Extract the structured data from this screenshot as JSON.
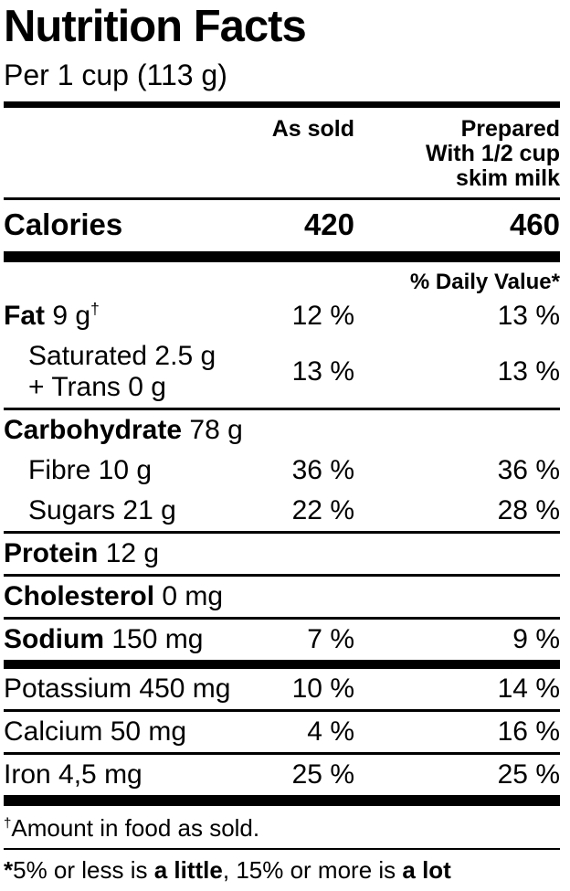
{
  "label": {
    "title": "Nutrition Facts",
    "serving": "Per 1 cup (113 g)",
    "columns": {
      "as_sold": "As sold",
      "prepared_line1": "Prepared",
      "prepared_line2": "With 1/2 cup",
      "prepared_line3": "skim milk"
    },
    "calories": {
      "name": "Calories",
      "as_sold": "420",
      "prepared": "460"
    },
    "daily_value_header": "% Daily Value*",
    "rows": [
      {
        "bold": "Fat",
        "rest": "9 g",
        "sup": "†",
        "as_sold": "12 %",
        "prepared": "13 %"
      },
      {
        "line1": "Saturated 2.5 g",
        "line2": "+ Trans 0 g",
        "as_sold": "13 %",
        "prepared": "13 %"
      },
      {
        "bold": "Carbohydrate",
        "rest": "78 g",
        "as_sold": "",
        "prepared": ""
      },
      {
        "rest": "Fibre 10 g",
        "as_sold": "36 %",
        "prepared": "36 %"
      },
      {
        "rest": "Sugars 21 g",
        "as_sold": "22 %",
        "prepared": "28 %"
      },
      {
        "bold": "Protein",
        "rest": "12 g",
        "as_sold": "",
        "prepared": ""
      },
      {
        "bold": "Cholesterol",
        "rest": "0 mg",
        "as_sold": "",
        "prepared": ""
      },
      {
        "bold": "Sodium",
        "rest": "150 mg",
        "as_sold": "7 %",
        "prepared": "9 %"
      },
      {
        "rest": "Potassium 450 mg",
        "as_sold": "10 %",
        "prepared": "14 %"
      },
      {
        "rest": "Calcium 50 mg",
        "as_sold": "4 %",
        "prepared": "16 %"
      },
      {
        "rest": "Iron 4,5 mg",
        "as_sold": "25 %",
        "prepared": "25 %"
      }
    ],
    "footnotes": {
      "dagger_sup": "†",
      "dagger_text": "Amount in food as sold.",
      "dv_star": "*",
      "dv_p1": "5% or less is ",
      "dv_b1": "a little",
      "dv_p2": ", 15% or more is ",
      "dv_b2": "a lot"
    },
    "colors": {
      "ink": "#000000",
      "background": "#ffffff"
    }
  }
}
